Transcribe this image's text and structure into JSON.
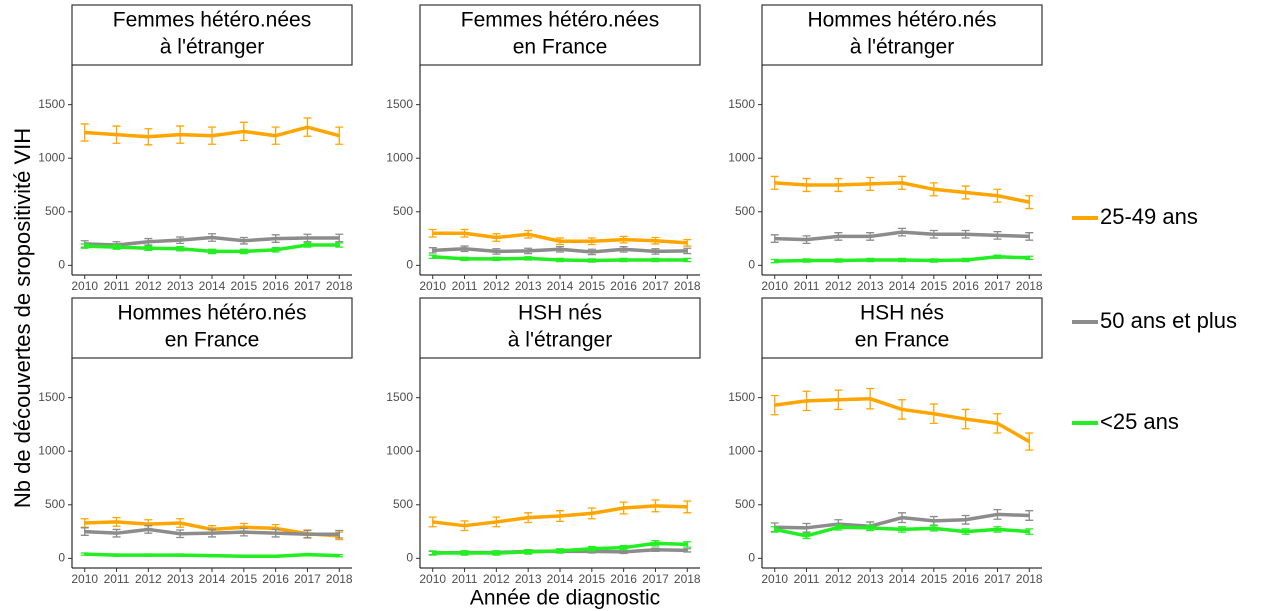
{
  "chart_data": [
    {
      "type": "line",
      "title": [
        "Femmes hétéro.nées",
        "à l'étranger"
      ],
      "ylabel": "Nb de découvertes de sropositivité VIH",
      "xlabel": "Année de diagnostic",
      "x": [
        2010,
        2011,
        2012,
        2013,
        2014,
        2015,
        2016,
        2017,
        2018
      ],
      "xlim": [
        2009.6,
        2018.4
      ],
      "xticks": [
        2010,
        2011,
        2012,
        2013,
        2014,
        2015,
        2016,
        2017,
        2018
      ],
      "ylim": [
        -90,
        1870
      ],
      "yticks": [
        0,
        500,
        1000,
        1500
      ],
      "series": [
        {
          "name": "25-49 ans",
          "color": "#FFA500",
          "values": [
            1240,
            1220,
            1200,
            1220,
            1210,
            1250,
            1210,
            1290,
            1210
          ],
          "errors": [
            80,
            80,
            75,
            80,
            80,
            85,
            80,
            85,
            80
          ]
        },
        {
          "name": "50 ans et plus",
          "color": "#8C8C8C",
          "values": [
            200,
            190,
            220,
            235,
            260,
            230,
            250,
            255,
            255
          ],
          "errors": [
            30,
            30,
            30,
            30,
            35,
            30,
            35,
            35,
            35
          ]
        },
        {
          "name": "<25 ans",
          "color": "#22EE22",
          "values": [
            180,
            170,
            160,
            155,
            130,
            130,
            145,
            190,
            190
          ],
          "errors": [
            20,
            20,
            20,
            20,
            20,
            20,
            20,
            20,
            20
          ]
        }
      ]
    },
    {
      "type": "line",
      "title": [
        "Femmes hétéro.nées",
        "en France"
      ],
      "x": [
        2010,
        2011,
        2012,
        2013,
        2014,
        2015,
        2016,
        2017,
        2018
      ],
      "xlim": [
        2009.6,
        2018.4
      ],
      "xticks": [
        2010,
        2011,
        2012,
        2013,
        2014,
        2015,
        2016,
        2017,
        2018
      ],
      "ylim": [
        -90,
        1870
      ],
      "yticks": [
        0,
        500,
        1000,
        1500
      ],
      "series": [
        {
          "name": "25-49 ans",
          "color": "#FFA500",
          "values": [
            300,
            300,
            260,
            290,
            225,
            225,
            240,
            230,
            210
          ],
          "errors": [
            35,
            35,
            35,
            35,
            30,
            30,
            30,
            30,
            30
          ]
        },
        {
          "name": "50 ans et plus",
          "color": "#8C8C8C",
          "values": [
            140,
            155,
            130,
            135,
            150,
            125,
            150,
            130,
            135
          ],
          "errors": [
            25,
            25,
            25,
            25,
            25,
            25,
            25,
            25,
            25
          ]
        },
        {
          "name": "<25 ans",
          "color": "#22EE22",
          "values": [
            80,
            60,
            60,
            65,
            50,
            45,
            50,
            50,
            50
          ],
          "errors": [
            15,
            15,
            15,
            15,
            15,
            15,
            15,
            15,
            15
          ]
        }
      ]
    },
    {
      "type": "line",
      "title": [
        "Hommes hétéro.nés",
        "à l'étranger"
      ],
      "x": [
        2010,
        2011,
        2012,
        2013,
        2014,
        2015,
        2016,
        2017,
        2018
      ],
      "xlim": [
        2009.6,
        2018.4
      ],
      "xticks": [
        2010,
        2011,
        2012,
        2013,
        2014,
        2015,
        2016,
        2017,
        2018
      ],
      "ylim": [
        -90,
        1870
      ],
      "yticks": [
        0,
        500,
        1000,
        1500
      ],
      "series": [
        {
          "name": "25-49 ans",
          "color": "#FFA500",
          "values": [
            770,
            750,
            750,
            760,
            770,
            710,
            680,
            650,
            590
          ],
          "errors": [
            60,
            60,
            60,
            60,
            60,
            60,
            60,
            60,
            60
          ]
        },
        {
          "name": "50 ans et plus",
          "color": "#8C8C8C",
          "values": [
            250,
            240,
            270,
            270,
            310,
            290,
            290,
            280,
            270
          ],
          "errors": [
            35,
            35,
            35,
            35,
            35,
            35,
            35,
            35,
            35
          ]
        },
        {
          "name": "<25 ans",
          "color": "#22EE22",
          "values": [
            40,
            45,
            45,
            50,
            50,
            45,
            50,
            80,
            70
          ],
          "errors": [
            15,
            15,
            15,
            15,
            15,
            15,
            15,
            15,
            15
          ]
        }
      ]
    },
    {
      "type": "line",
      "title": [
        "Hommes hétéro.nés",
        "en France"
      ],
      "x": [
        2010,
        2011,
        2012,
        2013,
        2014,
        2015,
        2016,
        2017,
        2018
      ],
      "xlim": [
        2009.6,
        2018.4
      ],
      "xticks": [
        2010,
        2011,
        2012,
        2013,
        2014,
        2015,
        2016,
        2017,
        2018
      ],
      "ylim": [
        -90,
        1870
      ],
      "yticks": [
        0,
        500,
        1000,
        1500
      ],
      "series": [
        {
          "name": "25-49 ans",
          "color": "#FFA500",
          "values": [
            330,
            340,
            320,
            330,
            270,
            290,
            280,
            230,
            210
          ],
          "errors": [
            40,
            40,
            40,
            40,
            35,
            35,
            35,
            35,
            35
          ]
        },
        {
          "name": "50 ans et plus",
          "color": "#8C8C8C",
          "values": [
            250,
            235,
            270,
            230,
            235,
            245,
            235,
            225,
            225
          ],
          "errors": [
            35,
            35,
            35,
            35,
            35,
            35,
            35,
            35,
            35
          ]
        },
        {
          "name": "<25 ans",
          "color": "#22EE22",
          "values": [
            40,
            30,
            30,
            30,
            25,
            20,
            20,
            35,
            25
          ],
          "errors": [
            10,
            10,
            10,
            10,
            10,
            10,
            10,
            10,
            10
          ]
        }
      ]
    },
    {
      "type": "line",
      "title": [
        "HSH nés",
        "à l'étranger"
      ],
      "x": [
        2010,
        2011,
        2012,
        2013,
        2014,
        2015,
        2016,
        2017,
        2018
      ],
      "xlim": [
        2009.6,
        2018.4
      ],
      "xticks": [
        2010,
        2011,
        2012,
        2013,
        2014,
        2015,
        2016,
        2017,
        2018
      ],
      "ylim": [
        -90,
        1870
      ],
      "yticks": [
        0,
        500,
        1000,
        1500
      ],
      "series": [
        {
          "name": "25-49 ans",
          "color": "#FFA500",
          "values": [
            340,
            305,
            340,
            380,
            395,
            420,
            470,
            490,
            480
          ],
          "errors": [
            45,
            45,
            45,
            45,
            50,
            50,
            55,
            55,
            55
          ]
        },
        {
          "name": "50 ans et plus",
          "color": "#8C8C8C",
          "values": [
            50,
            55,
            55,
            65,
            65,
            65,
            60,
            80,
            75
          ],
          "errors": [
            15,
            15,
            15,
            15,
            15,
            15,
            15,
            15,
            15
          ]
        },
        {
          "name": "<25 ans",
          "color": "#22EE22",
          "values": [
            50,
            50,
            50,
            60,
            70,
            90,
            100,
            140,
            130
          ],
          "errors": [
            20,
            20,
            20,
            20,
            20,
            20,
            20,
            25,
            25
          ]
        }
      ]
    },
    {
      "type": "line",
      "title": [
        "HSH nés",
        "en France"
      ],
      "x": [
        2010,
        2011,
        2012,
        2013,
        2014,
        2015,
        2016,
        2017,
        2018
      ],
      "xlim": [
        2009.6,
        2018.4
      ],
      "xticks": [
        2010,
        2011,
        2012,
        2013,
        2014,
        2015,
        2016,
        2017,
        2018
      ],
      "ylim": [
        -90,
        1870
      ],
      "yticks": [
        0,
        500,
        1000,
        1500
      ],
      "series": [
        {
          "name": "25-49 ans",
          "color": "#FFA500",
          "values": [
            1430,
            1470,
            1480,
            1490,
            1390,
            1350,
            1300,
            1260,
            1090
          ],
          "errors": [
            90,
            90,
            90,
            95,
            90,
            90,
            90,
            90,
            80
          ]
        },
        {
          "name": "50 ans et plus",
          "color": "#8C8C8C",
          "values": [
            290,
            285,
            320,
            300,
            380,
            350,
            360,
            410,
            400
          ],
          "errors": [
            40,
            40,
            40,
            40,
            45,
            40,
            40,
            45,
            45
          ]
        },
        {
          "name": "<25 ans",
          "color": "#22EE22",
          "values": [
            270,
            210,
            290,
            285,
            270,
            280,
            250,
            270,
            250
          ],
          "errors": [
            25,
            25,
            25,
            25,
            25,
            25,
            25,
            25,
            25
          ]
        }
      ]
    }
  ]
}
